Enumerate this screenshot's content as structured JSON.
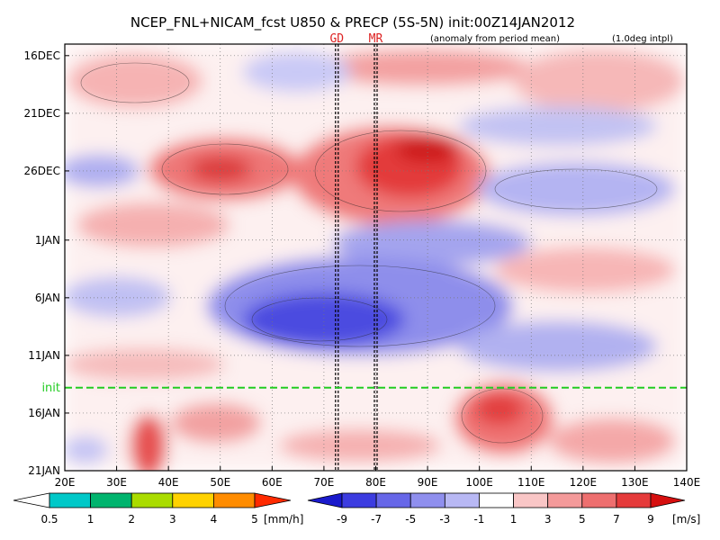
{
  "header": {
    "title": "NCEP_FNL+NICAM_fcst U850 & PRECP (5S-5N) init:00Z14JAN2012",
    "note_left": "(anomaly from period mean)",
    "note_right": "(1.0deg intpl)",
    "marker_labels": [
      "GD",
      "MR"
    ]
  },
  "chart_data": {
    "type": "heatmap",
    "title": "NCEP_FNL+NICAM_fcst U850 & PRECP (5S-5N) init:00Z14JAN2012",
    "xlabel": "",
    "ylabel": "",
    "xlim": [
      20,
      140
    ],
    "x_ticks": [
      20,
      30,
      40,
      50,
      60,
      70,
      80,
      90,
      100,
      110,
      120,
      130,
      140
    ],
    "x_tick_labels": [
      "20E",
      "30E",
      "40E",
      "50E",
      "60E",
      "70E",
      "80E",
      "90E",
      "100E",
      "110E",
      "120E",
      "130E",
      "140E"
    ],
    "y_ticks": [
      {
        "label": "16DEC",
        "day": 1
      },
      {
        "label": "21DEC",
        "day": 6
      },
      {
        "label": "26DEC",
        "day": 11
      },
      {
        "label": "1JAN",
        "day": 17
      },
      {
        "label": "6JAN",
        "day": 22
      },
      {
        "label": "11JAN",
        "day": 27
      },
      {
        "label": "16JAN",
        "day": 32
      },
      {
        "label": "21JAN",
        "day": 37
      }
    ],
    "ylim_days": [
      0,
      37
    ],
    "init_line": {
      "label": "init",
      "day": 29.8,
      "color": "#22cc22"
    },
    "longitude_markers": [
      {
        "label": "GD",
        "lon": 72.5,
        "color": "#dd2222"
      },
      {
        "label": "MR",
        "lon": 80,
        "color": "#dd2222"
      }
    ],
    "shading_features": [
      {
        "field": "u850",
        "sign": "positive",
        "lon": [
          40,
          58
        ],
        "day": [
          8,
          13
        ],
        "value": 7
      },
      {
        "field": "u850",
        "sign": "positive",
        "lon": [
          74,
          100
        ],
        "day": [
          7,
          14
        ],
        "value": 9
      },
      {
        "field": "u850",
        "sign": "negative",
        "lon": [
          50,
          100
        ],
        "day": [
          17,
          26
        ],
        "value": -7
      },
      {
        "field": "u850",
        "sign": "negative",
        "lon": [
          20,
          35
        ],
        "day": [
          9,
          12
        ],
        "value": -5
      },
      {
        "field": "u850",
        "sign": "positive",
        "lon": [
          100,
          115
        ],
        "day": [
          30,
          36
        ],
        "value": 7
      },
      {
        "field": "u850",
        "sign": "positive",
        "lon": [
          33,
          42
        ],
        "day": [
          31,
          37
        ],
        "value": 5
      }
    ],
    "u850_levels": [
      -9,
      -7,
      -5,
      -3,
      -1,
      1,
      3,
      5,
      7,
      9
    ],
    "u850_colors": [
      "#1a1acc",
      "#3c3ce0",
      "#6767e8",
      "#8f8fee",
      "#b8b8f4",
      "#ffffff",
      "#f9c6c6",
      "#f49a9a",
      "#ee6f6f",
      "#e53b3b",
      "#d60f0f"
    ],
    "precip_levels": [
      0.5,
      1,
      2,
      3,
      4,
      5
    ],
    "precip_colors": [
      "#00c8c8",
      "#00b46e",
      "#aadc00",
      "#ffd200",
      "#ff8c00",
      "#ff2a00"
    ]
  },
  "legends": {
    "precip": {
      "tick_labels": [
        "0.5",
        "1",
        "2",
        "3",
        "4",
        "5"
      ],
      "unit": "[mm/h]"
    },
    "u850": {
      "tick_labels": [
        "-9",
        "-7",
        "-5",
        "-3",
        "-1",
        "1",
        "3",
        "5",
        "7",
        "9"
      ],
      "unit": "[m/s]"
    }
  }
}
